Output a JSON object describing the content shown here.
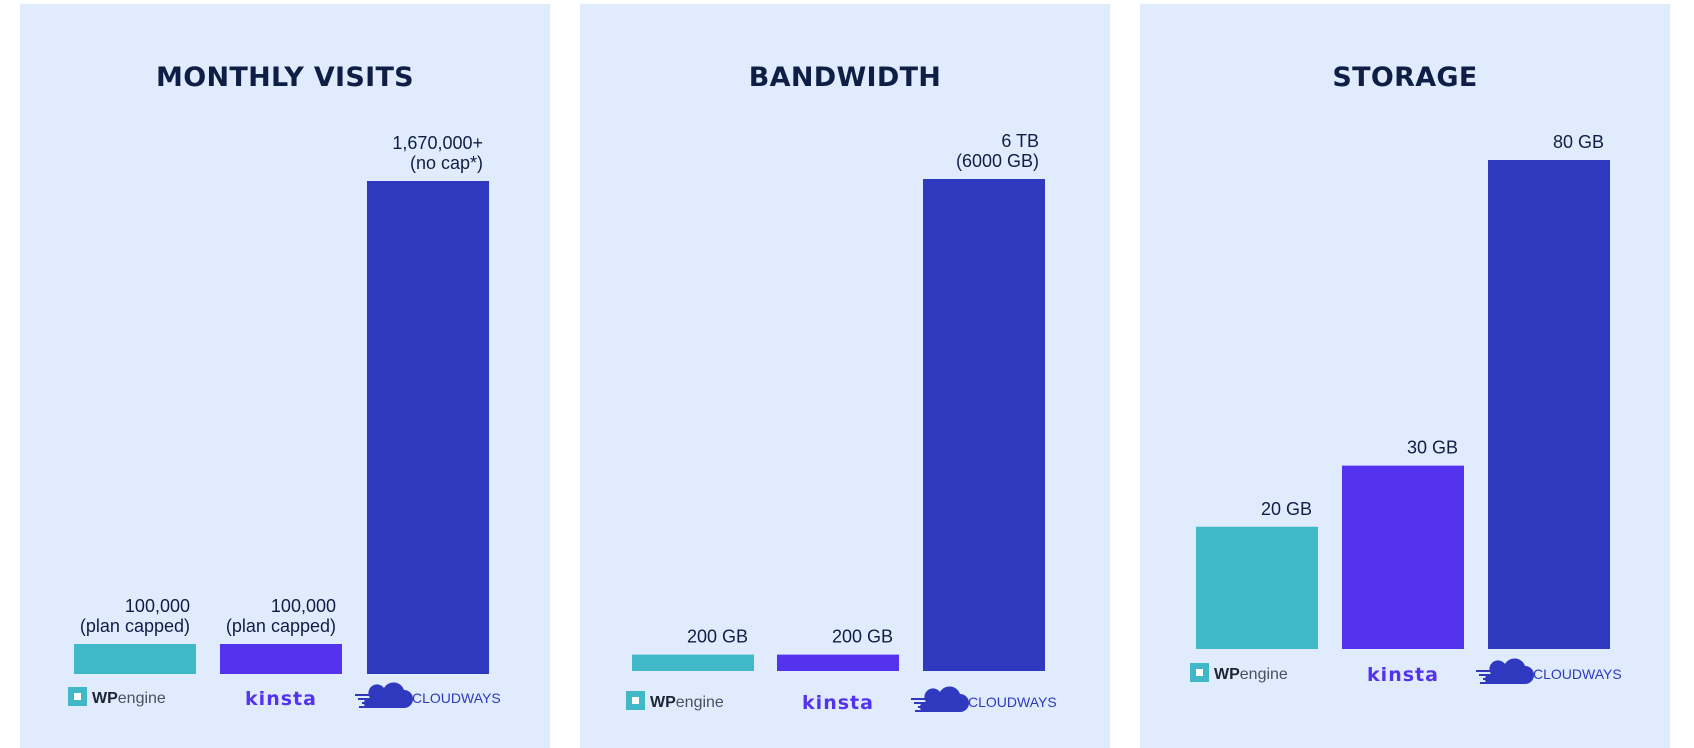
{
  "colors": {
    "background": "#ffffff",
    "panel": "#e0ecfd",
    "title": "#0f1e45",
    "wpengine": "#40b8c7",
    "kinsta": "#5333ed",
    "cloudways": "#2f39bf"
  },
  "providers": [
    "wpengine",
    "kinsta",
    "cloudways"
  ],
  "logos": {
    "wpengine": {
      "bold": "WP",
      "light": "engine"
    },
    "kinsta": {
      "text": "kinsta"
    },
    "cloudways": {
      "text": "CLOUDWAYS"
    }
  },
  "chart_data": [
    {
      "type": "bar",
      "title": "MONTHLY VISITS",
      "categories": [
        "wpengine",
        "kinsta",
        "cloudways"
      ],
      "values": [
        100000,
        100000,
        1670000
      ],
      "value_labels": [
        [
          "100,000",
          "(plan capped)"
        ],
        [
          "100,000",
          "(plan capped)"
        ],
        [
          "1,670,000+",
          "(no cap*)"
        ]
      ],
      "ylim": [
        0,
        1670000
      ],
      "grid": false
    },
    {
      "type": "bar",
      "title": "BANDWIDTH",
      "categories": [
        "wpengine",
        "kinsta",
        "cloudways"
      ],
      "values": [
        200,
        200,
        6000
      ],
      "value_labels": [
        [
          "200 GB"
        ],
        [
          "200 GB"
        ],
        [
          "6 TB",
          "(6000 GB)"
        ]
      ],
      "ylim": [
        0,
        6000
      ],
      "grid": false
    },
    {
      "type": "bar",
      "title": "STORAGE",
      "categories": [
        "wpengine",
        "kinsta",
        "cloudways"
      ],
      "values": [
        20,
        30,
        80
      ],
      "value_labels": [
        [
          "20 GB"
        ],
        [
          "30 GB"
        ],
        [
          "80 GB"
        ]
      ],
      "ylim": [
        0,
        80
      ],
      "grid": false
    }
  ]
}
